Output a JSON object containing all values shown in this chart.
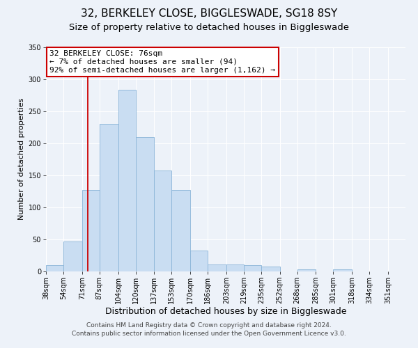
{
  "title": "32, BERKELEY CLOSE, BIGGLESWADE, SG18 8SY",
  "subtitle": "Size of property relative to detached houses in Biggleswade",
  "xlabel": "Distribution of detached houses by size in Biggleswade",
  "ylabel": "Number of detached properties",
  "bin_edges": [
    38,
    54,
    71,
    87,
    104,
    120,
    137,
    153,
    170,
    186,
    203,
    219,
    235,
    252,
    268,
    285,
    301,
    318,
    334,
    351,
    367
  ],
  "bar_heights": [
    10,
    47,
    127,
    230,
    283,
    210,
    157,
    127,
    33,
    11,
    11,
    10,
    8,
    0,
    3,
    0,
    3,
    0,
    0,
    0
  ],
  "bar_color": "#c9ddf2",
  "bar_edge_color": "#8ab4d8",
  "vline_x": 76,
  "vline_color": "#cc0000",
  "ylim": [
    0,
    350
  ],
  "yticks": [
    0,
    50,
    100,
    150,
    200,
    250,
    300,
    350
  ],
  "annotation_box_text": "32 BERKELEY CLOSE: 76sqm\n← 7% of detached houses are smaller (94)\n92% of semi-detached houses are larger (1,162) →",
  "annotation_box_color": "#ffffff",
  "annotation_box_edge_color": "#cc0000",
  "footer_line1": "Contains HM Land Registry data © Crown copyright and database right 2024.",
  "footer_line2": "Contains public sector information licensed under the Open Government Licence v3.0.",
  "background_color": "#edf2f9",
  "title_fontsize": 11,
  "subtitle_fontsize": 9.5,
  "xlabel_fontsize": 9,
  "ylabel_fontsize": 8,
  "tick_fontsize": 7,
  "annotation_fontsize": 8,
  "footer_fontsize": 6.5
}
